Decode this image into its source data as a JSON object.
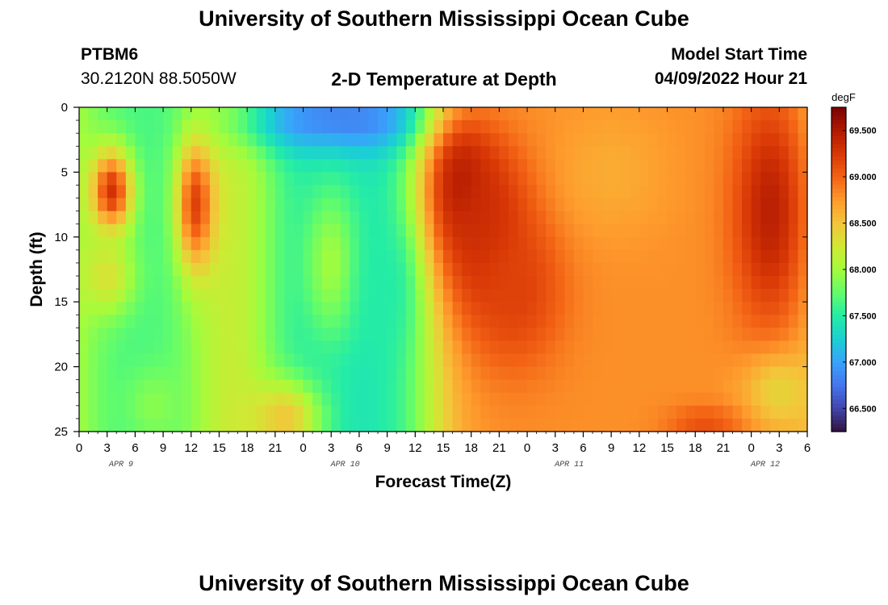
{
  "header": {
    "title": "University of Southern Mississippi Ocean Cube",
    "station": "PTBM6",
    "coords": "30.2120N  88.5050W",
    "subtitle": "2-D Temperature at Depth",
    "model_label": "Model Start Time",
    "model_time": "04/09/2022 Hour 21"
  },
  "footer": {
    "title": "University of Southern Mississippi Ocean Cube"
  },
  "chart_data": {
    "type": "heatmap",
    "title": "2-D Temperature at Depth",
    "xlabel": "Forecast Time(Z)",
    "ylabel": "Depth (ft)",
    "x_tick_labels": [
      "0",
      "3",
      "6",
      "9",
      "12",
      "15",
      "18",
      "21",
      "0",
      "3",
      "6",
      "9",
      "12",
      "15",
      "18",
      "21",
      "0",
      "3",
      "6",
      "9",
      "12",
      "15",
      "18",
      "21",
      "0",
      "3",
      "6"
    ],
    "date_labels": [
      {
        "text": "APR 9",
        "at_tick": 1.5
      },
      {
        "text": "APR 10",
        "at_tick": 9.5
      },
      {
        "text": "APR 11",
        "at_tick": 17.5
      },
      {
        "text": "APR 12",
        "at_tick": 24.5
      }
    ],
    "y_ticks": [
      0,
      5,
      10,
      15,
      20,
      25
    ],
    "ylim": [
      0,
      25
    ],
    "y_inverted": true,
    "x_range_hours": [
      0,
      78
    ],
    "colorbar": {
      "unit": "degF",
      "range": [
        66.25,
        69.75
      ],
      "tick_values": [
        66.5,
        67.0,
        67.5,
        68.0,
        68.5,
        69.0,
        69.5
      ],
      "tick_labels": [
        "66.500",
        "67.000",
        "67.500",
        "68.000",
        "68.500",
        "69.000",
        "69.500"
      ],
      "colors": [
        "#30123b",
        "#4145ab",
        "#4675ed",
        "#39a2fc",
        "#1bcfd4",
        "#24eca6",
        "#61fc6c",
        "#a4fc3b",
        "#d1e834",
        "#f3c63a",
        "#fe9b2d",
        "#f36315",
        "#d93806",
        "#b11901",
        "#7a0402"
      ]
    },
    "grid": false,
    "legend": "colorbar-right",
    "cells_x": 78,
    "cells_y": 25,
    "temperature_features_degF": [
      {
        "base": 68.4
      },
      {
        "t0": 0,
        "t1": 13,
        "d0": 0,
        "d1": 25,
        "value": 67.6,
        "smooth": 2.0
      },
      {
        "t0": 20,
        "t1": 37,
        "d0": 0,
        "d1": 25,
        "value": 67.4,
        "smooth": 1.8
      },
      {
        "t0": 40,
        "t1": 78,
        "d0": 0,
        "d1": 25,
        "value": 68.8,
        "smooth": 1.5
      },
      {
        "tc": 3.5,
        "dc": 6.5,
        "tr": 2.2,
        "dr": 3.2,
        "value": 69.3
      },
      {
        "tc": 12.5,
        "dc": 7.5,
        "tr": 2.0,
        "dr": 5.0,
        "value": 69.2
      },
      {
        "tc": 3,
        "dc": 13,
        "tr": 3.0,
        "dr": 3.0,
        "value": 68.3
      },
      {
        "tc": 28,
        "dc": 1,
        "tr": 10,
        "dr": 2.5,
        "value": 66.8
      },
      {
        "tc": 41,
        "dc": 6,
        "tr": 4,
        "dr": 6,
        "value": 69.5
      },
      {
        "tc": 44,
        "dc": 10,
        "tr": 5,
        "dr": 7,
        "value": 69.4
      },
      {
        "tc": 47,
        "dc": 14,
        "tr": 5,
        "dr": 6,
        "value": 69.2
      },
      {
        "tc": 57,
        "dc": 5,
        "tr": 6,
        "dr": 5,
        "value": 68.65
      },
      {
        "tc": 74,
        "dc": 8,
        "tr": 4,
        "dr": 9,
        "value": 69.45
      },
      {
        "tc": 75,
        "dc": 22,
        "tr": 4,
        "dr": 3,
        "value": 68.4
      },
      {
        "tc": 67,
        "dc": 24.5,
        "tr": 4,
        "dr": 1.5,
        "value": 69.1
      },
      {
        "tc": 22,
        "dc": 24,
        "tr": 4,
        "dr": 3,
        "value": 68.5
      },
      {
        "tc": 27,
        "dc": 12,
        "tr": 3,
        "dr": 6,
        "value": 68.0
      },
      {
        "tc": 33,
        "dc": 14,
        "tr": 3,
        "dr": 5,
        "value": 67.5
      },
      {
        "tc": 8,
        "dc": 23,
        "tr": 3,
        "dr": 3,
        "value": 67.9
      }
    ]
  }
}
